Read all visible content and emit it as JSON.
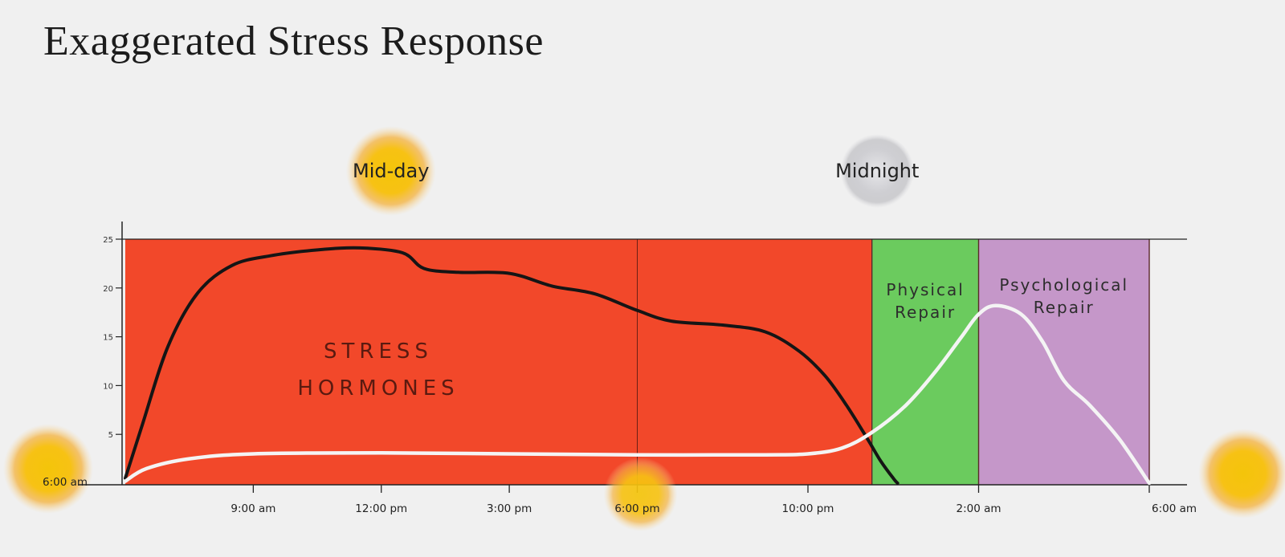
{
  "title": "Exaggerated Stress Response",
  "colors": {
    "background": "#f0f0f0",
    "stress_region": "#f2482a",
    "physical_region": "#6bcb5e",
    "psychological_region": "#c597c9",
    "stress_curve": "#151515",
    "repair_curve": "#f4f4f4",
    "sun": "#f5c40e",
    "moon": "#c8c8cc"
  },
  "chart_data": {
    "type": "area",
    "title": "Exaggerated Stress Response",
    "xlabel": "",
    "ylabel": "",
    "ylim": [
      0,
      25
    ],
    "yticks": [
      5,
      10,
      15,
      20,
      25
    ],
    "x_ticks": [
      {
        "label": "6:00 am",
        "hour": 0
      },
      {
        "label": "9:00 am",
        "hour": 3
      },
      {
        "label": "12:00 pm",
        "hour": 6
      },
      {
        "label": "3:00 pm",
        "hour": 9
      },
      {
        "label": "6:00 pm",
        "hour": 12
      },
      {
        "label": "10:00 pm",
        "hour": 16
      },
      {
        "label": "2:00 am",
        "hour": 20
      },
      {
        "label": "6:00 am",
        "hour": 24
      }
    ],
    "markers": [
      {
        "label": "Mid-day",
        "kind": "sun",
        "hour": 6
      },
      {
        "label": "Midnight",
        "kind": "moon",
        "hour": 18
      }
    ],
    "regions": [
      {
        "label_lines": [
          "STRESS",
          "HORMONES"
        ],
        "start_hour": 0,
        "end_hour": 17.5,
        "color": "#f2482a"
      },
      {
        "label_lines": [
          "Physical",
          "Repair"
        ],
        "start_hour": 17.5,
        "end_hour": 20,
        "color": "#6bcb5e"
      },
      {
        "label_lines": [
          "Psychological",
          "Repair"
        ],
        "start_hour": 20,
        "end_hour": 24,
        "color": "#c597c9"
      }
    ],
    "series": [
      {
        "kind": "stress",
        "x": [
          0,
          0.4,
          1,
          1.7,
          2.5,
          3.4,
          4.5,
          5.5,
          6.5,
          7,
          7.8,
          9,
          10,
          11,
          12,
          12.8,
          14,
          15,
          15.8,
          16.4,
          16.9,
          17.4,
          17.7,
          18,
          18.1
        ],
        "y": [
          0.5,
          6,
          14,
          19.5,
          22.3,
          23.3,
          23.9,
          24.1,
          23.6,
          22,
          21.6,
          21.5,
          20.2,
          19.4,
          17.7,
          16.6,
          16.2,
          15.5,
          13.5,
          11,
          8,
          4.5,
          2.3,
          0.5,
          0
        ]
      },
      {
        "kind": "repair",
        "x": [
          0,
          0.5,
          1.5,
          3,
          6,
          9,
          12,
          15,
          16,
          16.8,
          17.5,
          18.3,
          19,
          19.6,
          20,
          20.4,
          21,
          21.5,
          22,
          22.6,
          23.3,
          24
        ],
        "y": [
          0.2,
          1.5,
          2.5,
          3,
          3.1,
          3,
          2.9,
          2.9,
          3,
          3.6,
          5.2,
          8,
          11.5,
          15,
          17.3,
          18.2,
          17.3,
          14.5,
          10.5,
          8,
          4.5,
          0
        ]
      }
    ]
  }
}
